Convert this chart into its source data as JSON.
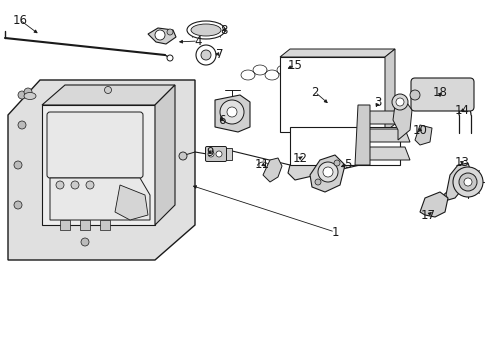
{
  "background_color": "#ffffff",
  "line_color": "#1a1a1a",
  "figsize": [
    4.89,
    3.6
  ],
  "dpi": 100,
  "panel_fill": "#e0e0e0",
  "part_fill": "#d8d8d8",
  "white": "#ffffff"
}
